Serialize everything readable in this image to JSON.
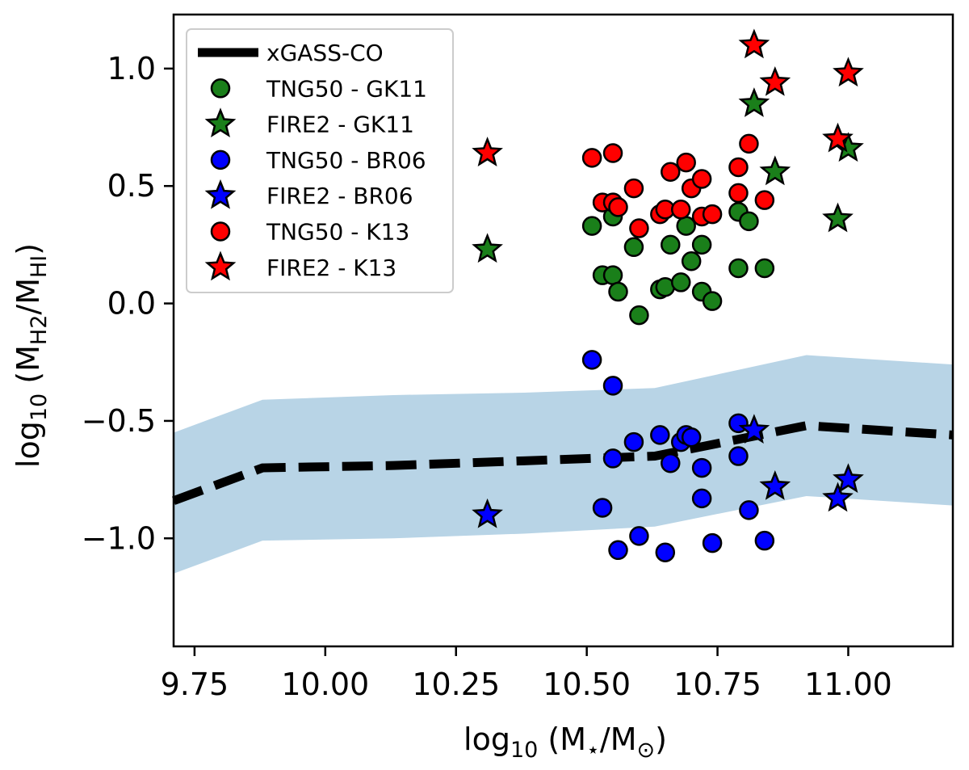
{
  "chart_data": {
    "type": "scatter",
    "xlabel": "log10 (M⋆/M⊙)",
    "ylabel": "log10 (MH2/MHI)",
    "xlim": [
      9.71,
      11.2
    ],
    "ylim": [
      -1.46,
      1.23
    ],
    "xticks": [
      9.75,
      10.0,
      10.25,
      10.5,
      10.75,
      11.0
    ],
    "xtick_labels": [
      "9.75",
      "10.00",
      "10.25",
      "10.50",
      "10.75",
      "11.00"
    ],
    "yticks": [
      -1.0,
      -0.5,
      0.0,
      0.5,
      1.0
    ],
    "ytick_labels": [
      "−1.0",
      "−0.5",
      "0.0",
      "0.5",
      "1.0"
    ],
    "grid": false,
    "legend_position": "top-left",
    "colors": {
      "gk11": "#1a7f1a",
      "br06": "#0000ff",
      "k13": "#ff0000",
      "band": "#b8d4e6",
      "line": "#000000"
    },
    "band": {
      "x": [
        9.71,
        9.88,
        10.13,
        10.38,
        10.63,
        10.92,
        11.2
      ],
      "lower": [
        -1.15,
        -1.01,
        -1.0,
        -0.98,
        -0.95,
        -0.82,
        -0.86
      ],
      "upper": [
        -0.55,
        -0.41,
        -0.39,
        -0.38,
        -0.36,
        -0.22,
        -0.26
      ]
    },
    "line": {
      "name": "xGASS-CO",
      "x": [
        9.71,
        9.88,
        10.13,
        10.38,
        10.63,
        10.92,
        11.2
      ],
      "y": [
        -0.84,
        -0.7,
        -0.69,
        -0.67,
        -0.65,
        -0.52,
        -0.56
      ]
    },
    "series": [
      {
        "name": "TNG50 - GK11",
        "marker": "circle",
        "color_key": "gk11",
        "x": [
          10.51,
          10.53,
          10.55,
          10.55,
          10.56,
          10.59,
          10.6,
          10.64,
          10.65,
          10.66,
          10.68,
          10.69,
          10.7,
          10.72,
          10.72,
          10.74,
          10.79,
          10.79,
          10.81,
          10.84
        ],
        "y": [
          0.33,
          0.12,
          0.37,
          0.12,
          0.05,
          0.24,
          -0.05,
          0.06,
          0.07,
          0.25,
          0.09,
          0.33,
          0.18,
          0.25,
          0.05,
          0.01,
          0.39,
          0.15,
          0.35,
          0.15
        ]
      },
      {
        "name": "FIRE2 - GK11",
        "marker": "star",
        "color_key": "gk11",
        "x": [
          10.31,
          10.82,
          10.86,
          10.98,
          11.0
        ],
        "y": [
          0.23,
          0.85,
          0.56,
          0.36,
          0.66
        ]
      },
      {
        "name": "TNG50 - BR06",
        "marker": "circle",
        "color_key": "br06",
        "x": [
          10.51,
          10.53,
          10.55,
          10.55,
          10.56,
          10.59,
          10.6,
          10.64,
          10.65,
          10.66,
          10.68,
          10.69,
          10.7,
          10.72,
          10.72,
          10.74,
          10.79,
          10.79,
          10.81,
          10.84
        ],
        "y": [
          -0.24,
          -0.87,
          -0.35,
          -0.66,
          -1.05,
          -0.59,
          -0.99,
          -0.56,
          -1.06,
          -0.68,
          -0.59,
          -0.56,
          -0.57,
          -0.7,
          -0.83,
          -1.02,
          -0.51,
          -0.65,
          -0.88,
          -1.01
        ]
      },
      {
        "name": "FIRE2 - BR06",
        "marker": "star",
        "color_key": "br06",
        "x": [
          10.31,
          10.82,
          10.86,
          10.98,
          11.0
        ],
        "y": [
          -0.9,
          -0.54,
          -0.78,
          -0.83,
          -0.75
        ]
      },
      {
        "name": "TNG50 - K13",
        "marker": "circle",
        "color_key": "k13",
        "x": [
          10.51,
          10.53,
          10.55,
          10.55,
          10.56,
          10.59,
          10.6,
          10.64,
          10.65,
          10.66,
          10.68,
          10.69,
          10.7,
          10.72,
          10.72,
          10.74,
          10.79,
          10.79,
          10.81,
          10.84
        ],
        "y": [
          0.62,
          0.43,
          0.64,
          0.43,
          0.41,
          0.49,
          0.32,
          0.38,
          0.4,
          0.56,
          0.4,
          0.6,
          0.49,
          0.53,
          0.37,
          0.38,
          0.58,
          0.47,
          0.68,
          0.44
        ]
      },
      {
        "name": "FIRE2 - K13",
        "marker": "star",
        "color_key": "k13",
        "x": [
          10.31,
          10.82,
          10.86,
          10.98,
          11.0
        ],
        "y": [
          0.64,
          1.1,
          0.94,
          0.7,
          0.98
        ]
      }
    ]
  }
}
